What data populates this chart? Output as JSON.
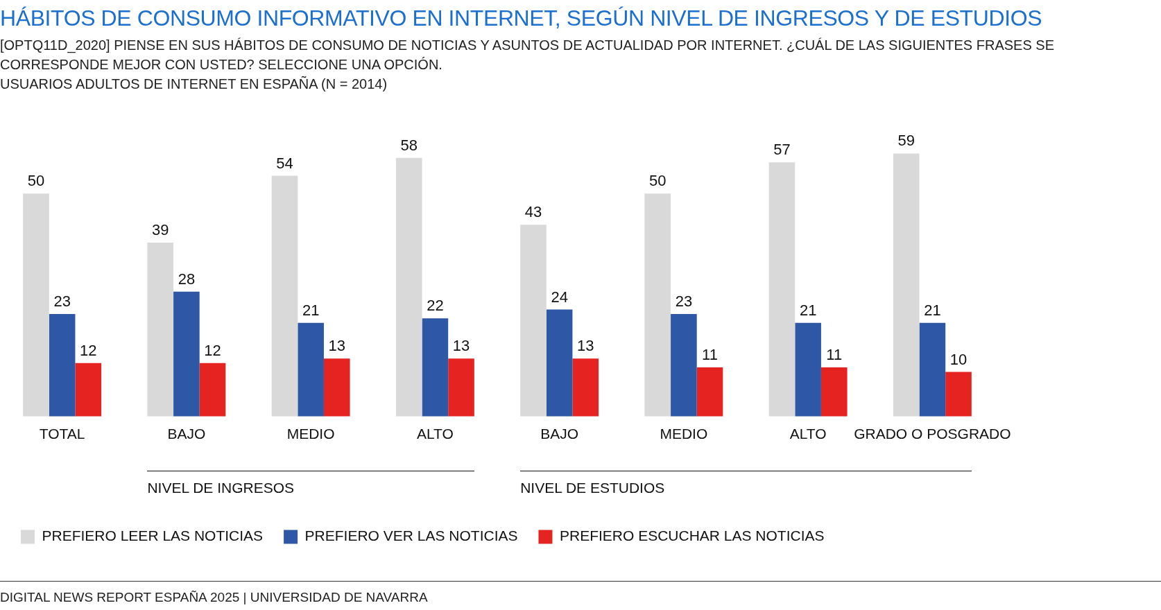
{
  "chart_data": {
    "type": "bar",
    "title": "HÁBITOS DE CONSUMO INFORMATIVO EN INTERNET, SEGÚN NIVEL DE INGRESOS Y DE ESTUDIOS",
    "subtitle": "[OPTQ11D_2020] PIENSE EN SUS HÁBITOS DE CONSUMO DE NOTICIAS Y ASUNTOS DE ACTUALIDAD POR INTERNET. ¿CUÁL DE LAS SIGUIENTES FRASES SE CORRESPONDE MEJOR CON USTED? SELECCIONE UNA OPCIÓN.\nUSUARIOS ADULTOS DE INTERNET EN ESPAÑA (N = 2014)",
    "categories": [
      "TOTAL",
      "BAJO",
      "MEDIO",
      "ALTO",
      "BAJO",
      "MEDIO",
      "ALTO",
      "GRADO O POSGRADO"
    ],
    "series": [
      {
        "name": "PREFIERO LEER LAS NOTICIAS",
        "color": "#d9d9d9",
        "values": [
          50,
          39,
          54,
          58,
          43,
          50,
          57,
          59
        ]
      },
      {
        "name": "PREFIERO VER LAS NOTICIAS",
        "color": "#2e58a5",
        "values": [
          23,
          28,
          21,
          22,
          24,
          23,
          21,
          21
        ]
      },
      {
        "name": "PREFIERO ESCUCHAR LAS NOTICIAS",
        "color": "#e52421",
        "values": [
          12,
          12,
          13,
          13,
          13,
          11,
          11,
          10
        ]
      }
    ],
    "data_labels": true,
    "grid": false,
    "legend": "bottom left",
    "tick_labels": "x",
    "annotations": [
      "NIVEL DE INGRESOS",
      "NIVEL DE ESTUDIOS",
      "DIGITAL NEWS REPORT ESPAÑA 2025 | UNIVERSIDAD DE NAVARRA"
    ]
  }
}
